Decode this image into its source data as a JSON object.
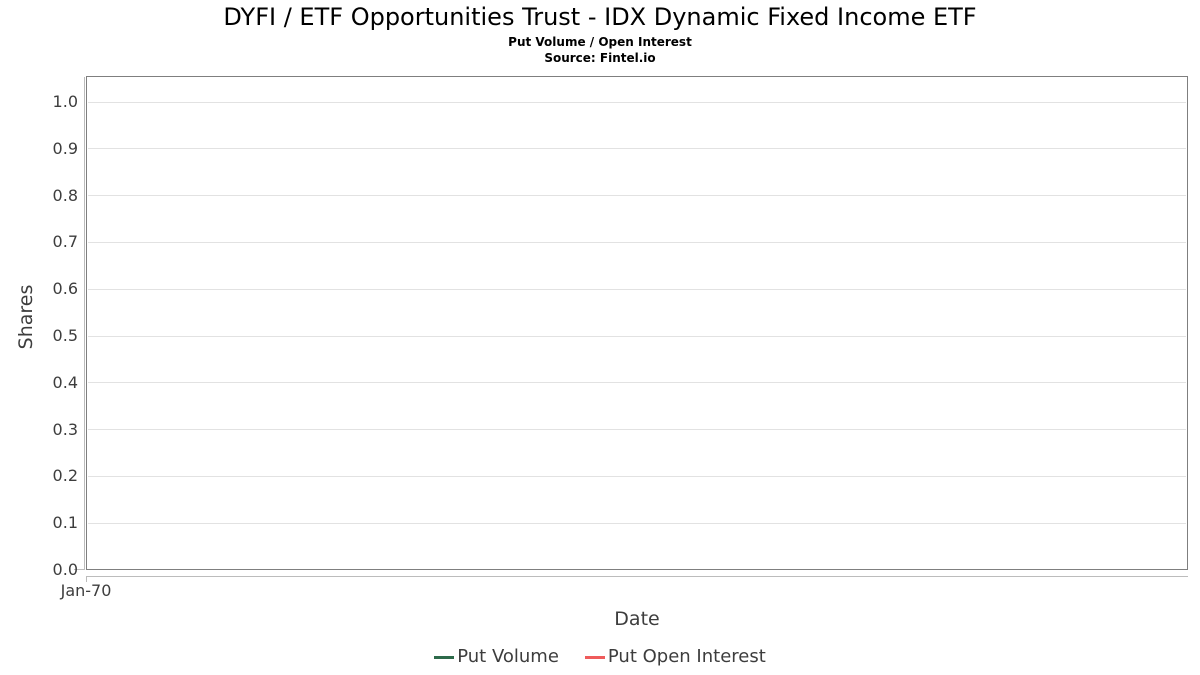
{
  "header": {
    "title": "DYFI / ETF Opportunities Trust - IDX Dynamic Fixed Income ETF",
    "subtitle": "Put Volume / Open Interest",
    "source": "Source: Fintel.io"
  },
  "chart_data": {
    "type": "line",
    "title": "DYFI / ETF Opportunities Trust - IDX Dynamic Fixed Income ETF",
    "subtitle": "Put Volume / Open Interest",
    "source": "Source: Fintel.io",
    "xlabel": "Date",
    "ylabel": "Shares",
    "x_tick_labels": [
      "Jan-70"
    ],
    "y_tick_labels": [
      "0.0",
      "0.1",
      "0.2",
      "0.3",
      "0.4",
      "0.5",
      "0.6",
      "0.7",
      "0.8",
      "0.9",
      "1.0"
    ],
    "ylim": [
      0.0,
      1.05
    ],
    "grid": "horizontal-only",
    "legend_position": "bottom-center",
    "plot_is_empty": true,
    "series": [
      {
        "name": "Put Volume",
        "color": "#2d6a4a",
        "x": [],
        "values": []
      },
      {
        "name": "Put Open Interest",
        "color": "#ef5b5b",
        "x": [],
        "values": []
      }
    ]
  },
  "style": {
    "background": "#ffffff",
    "title_color": "#000000",
    "frame_color": "#7f7f7f",
    "grid_color": "#e2e2e2",
    "axis_line_color": "#bcbcbc",
    "tick_label_color": "#3d3d3d",
    "axis_title_color": "#3d3d3d",
    "legend_text_color": "#3d3d3d"
  }
}
